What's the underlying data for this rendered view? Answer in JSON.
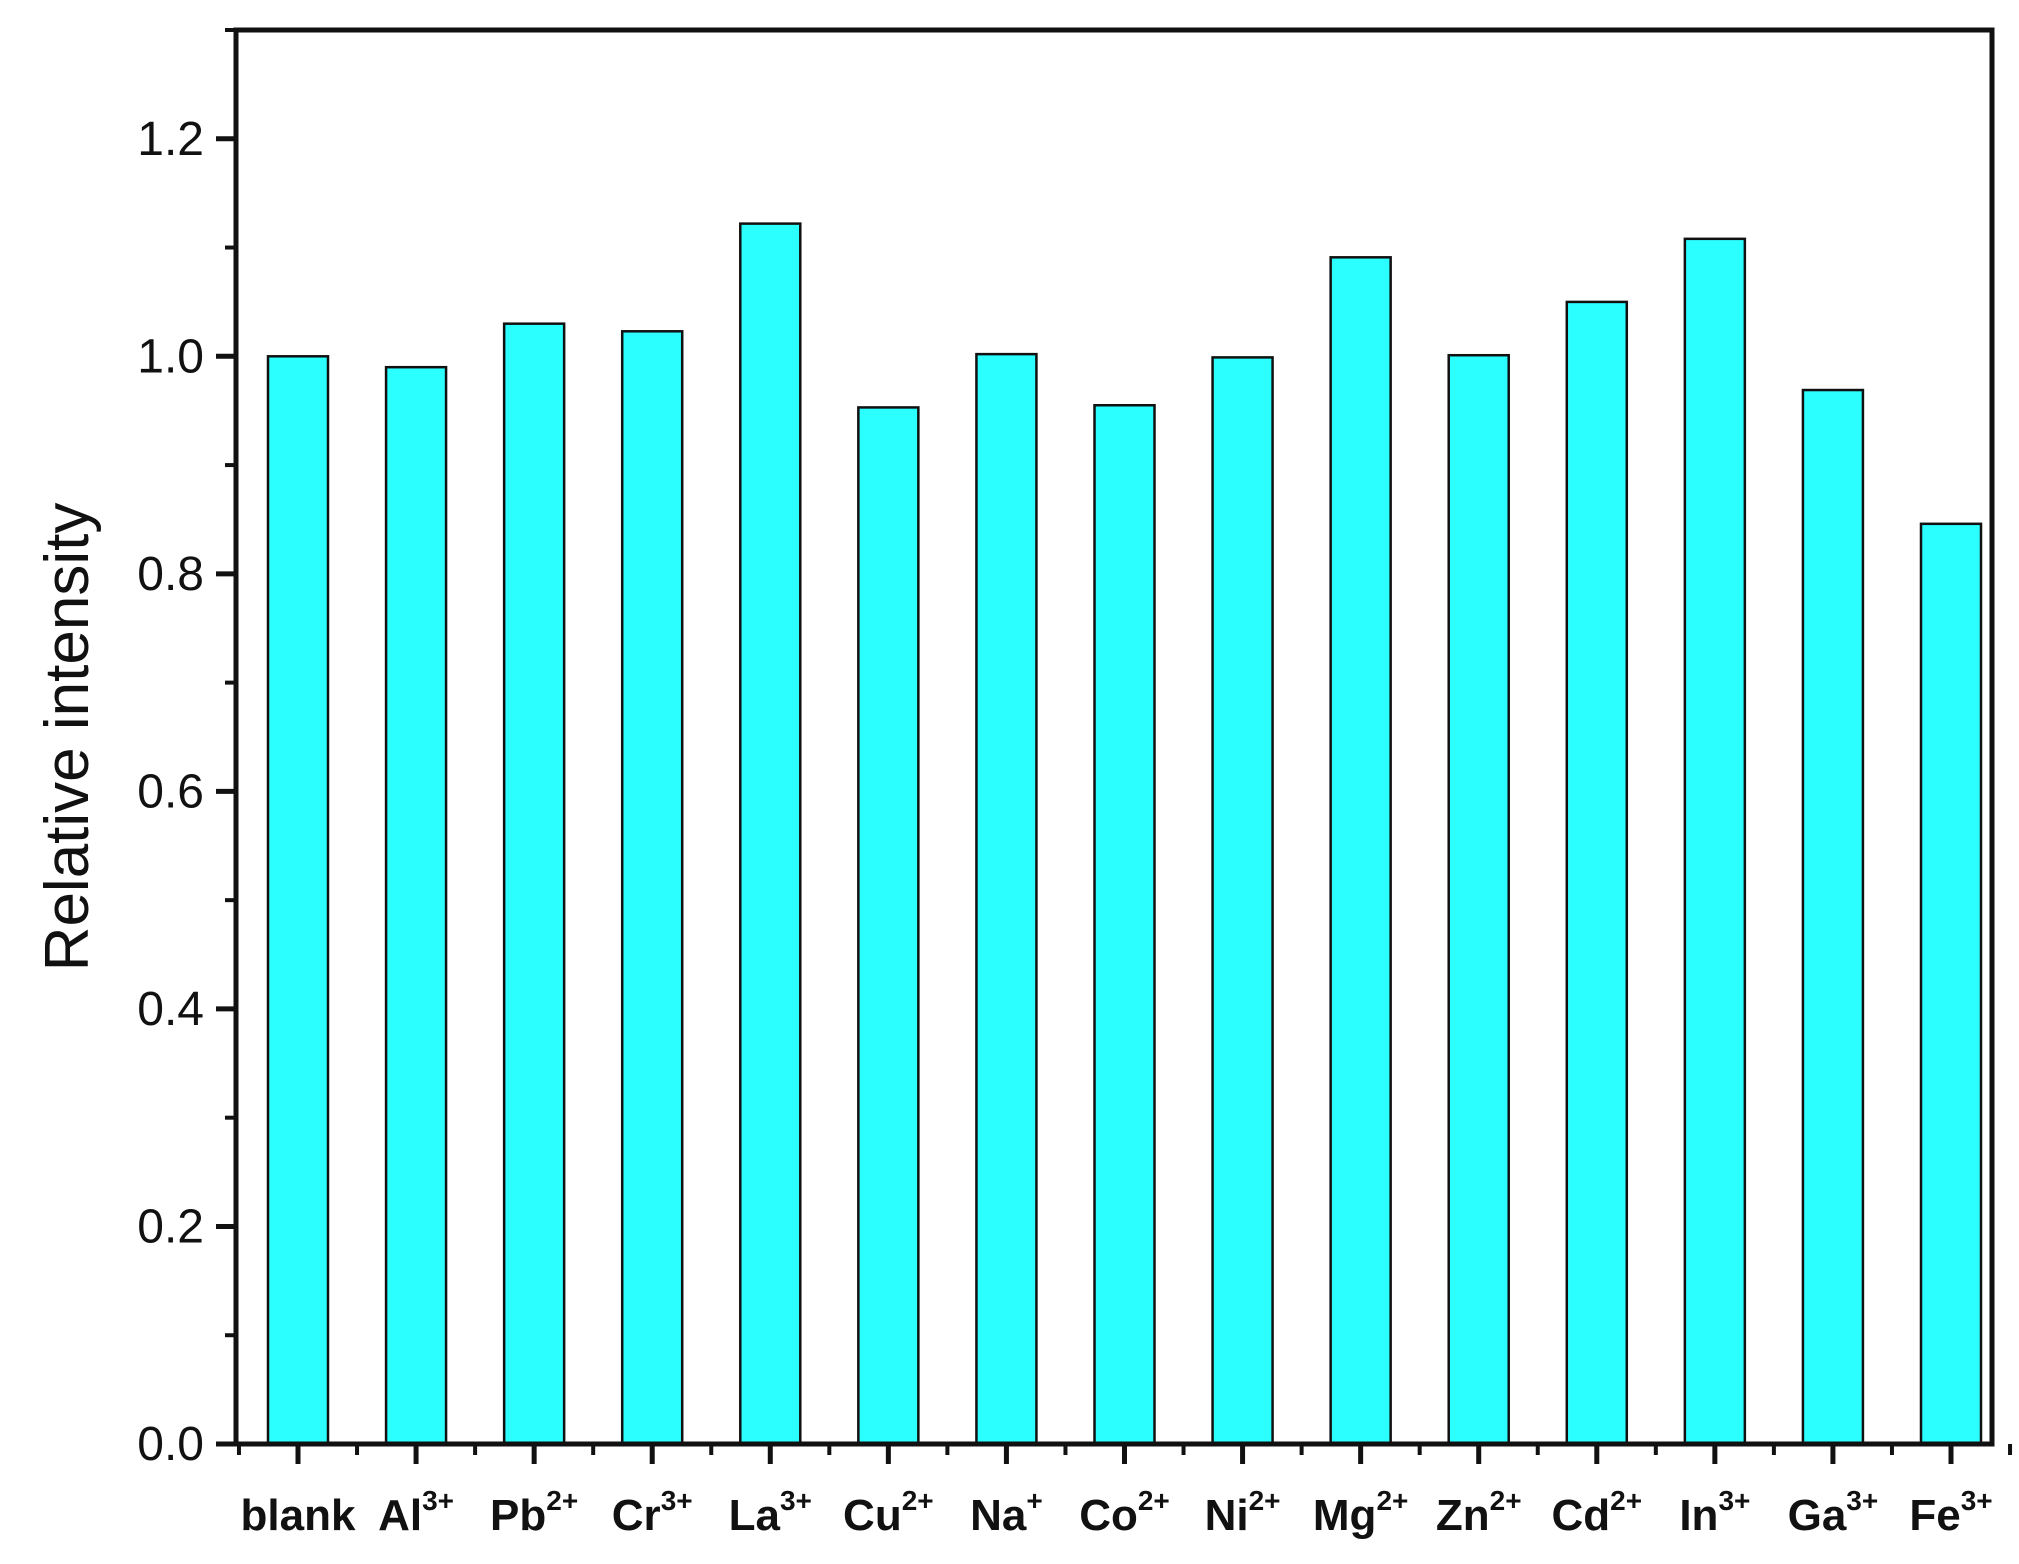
{
  "chart_data": {
    "type": "bar",
    "title": "",
    "xlabel": "",
    "ylabel": "Relative intensity",
    "ylim": [
      0,
      1.3
    ],
    "yticks": [
      0.0,
      0.2,
      0.4,
      0.6,
      0.8,
      1.0,
      1.2
    ],
    "ytick_labels": [
      "0.0",
      "0.2",
      "0.4",
      "0.6",
      "0.8",
      "1.0",
      "1.2"
    ],
    "categories": [
      {
        "base": "blank",
        "sup": ""
      },
      {
        "base": "Al",
        "sup": "3+"
      },
      {
        "base": "Pb",
        "sup": "2+"
      },
      {
        "base": "Cr",
        "sup": "3+"
      },
      {
        "base": "La",
        "sup": "3+"
      },
      {
        "base": "Cu",
        "sup": "2+"
      },
      {
        "base": "Na",
        "sup": "+"
      },
      {
        "base": "Co",
        "sup": "2+"
      },
      {
        "base": "Ni",
        "sup": "2+"
      },
      {
        "base": "Mg",
        "sup": "2+"
      },
      {
        "base": "Zn",
        "sup": "2+"
      },
      {
        "base": "Cd",
        "sup": "2+"
      },
      {
        "base": "In",
        "sup": "3+"
      },
      {
        "base": "Ga",
        "sup": "3+"
      },
      {
        "base": "Fe",
        "sup": "3+"
      }
    ],
    "values": [
      1.0,
      0.99,
      1.03,
      1.023,
      1.122,
      0.953,
      1.002,
      0.955,
      0.999,
      1.091,
      1.001,
      1.05,
      1.108,
      0.969,
      0.846
    ],
    "grid": false,
    "legend": "none",
    "colors": {
      "bar_fill": "#2BFFFF",
      "bar_edge": "#111111",
      "axis": "#111111"
    }
  }
}
